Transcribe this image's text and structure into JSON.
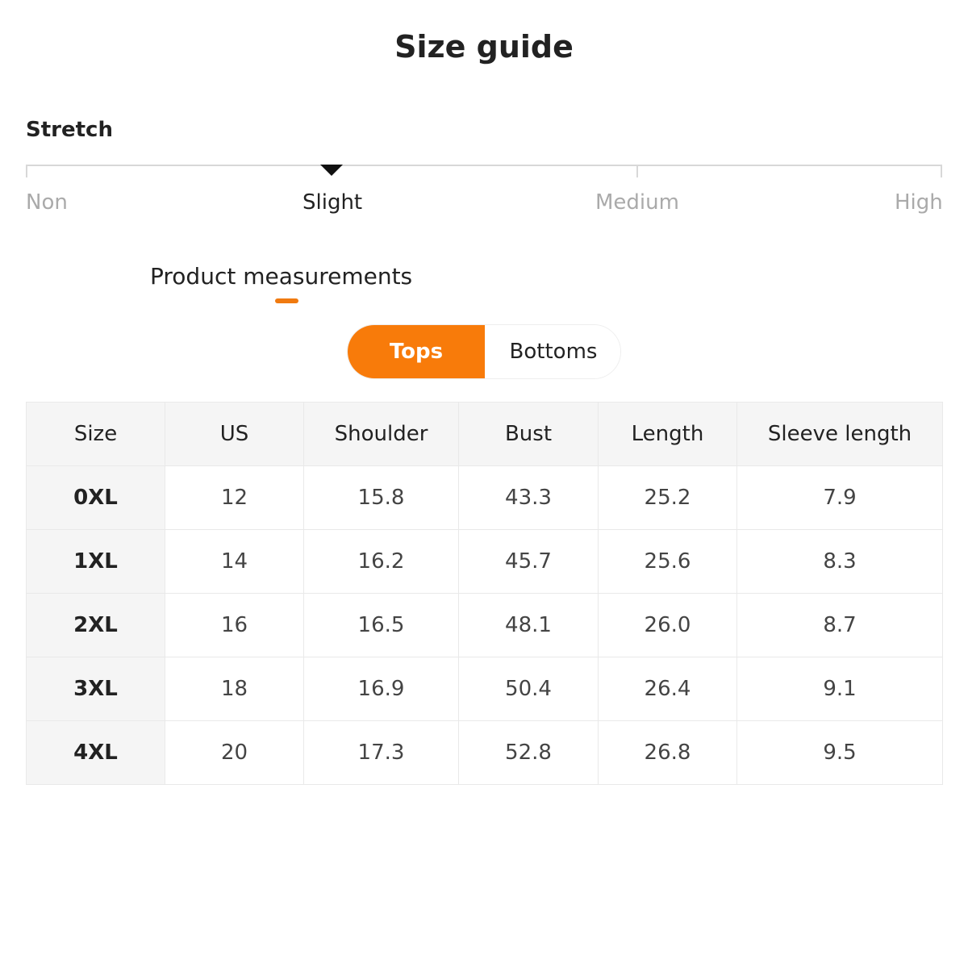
{
  "title": "Size guide",
  "stretch": {
    "label": "Stretch",
    "levels": [
      "Non",
      "Slight",
      "Medium",
      "High"
    ],
    "selected": "Slight"
  },
  "section": {
    "title": "Product measurements"
  },
  "tabs": [
    {
      "label": "Tops",
      "active": true
    },
    {
      "label": "Bottoms",
      "active": false
    }
  ],
  "colors": {
    "accent": "#f87b0a"
  },
  "table": {
    "headers": [
      "Size",
      "US",
      "Shoulder",
      "Bust",
      "Length",
      "Sleeve length"
    ],
    "rows": [
      [
        "0XL",
        "12",
        "15.8",
        "43.3",
        "25.2",
        "7.9"
      ],
      [
        "1XL",
        "14",
        "16.2",
        "45.7",
        "25.6",
        "8.3"
      ],
      [
        "2XL",
        "16",
        "16.5",
        "48.1",
        "26.0",
        "8.7"
      ],
      [
        "3XL",
        "18",
        "16.9",
        "50.4",
        "26.4",
        "9.1"
      ],
      [
        "4XL",
        "20",
        "17.3",
        "52.8",
        "26.8",
        "9.5"
      ]
    ]
  }
}
